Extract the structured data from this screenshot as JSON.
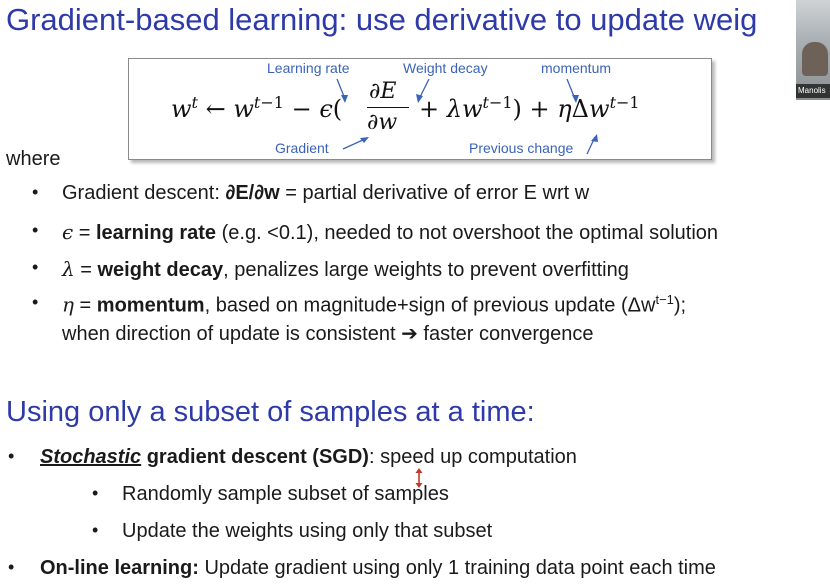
{
  "title": "Gradient-based learning: use derivative to update weig",
  "webcam": {
    "name": "Manolis"
  },
  "equation": {
    "annotations": {
      "learning_rate": "Learning rate",
      "weight_decay": "Weight decay",
      "momentum": "momentum",
      "gradient": "Gradient",
      "previous_change": "Previous change"
    }
  },
  "where_label": "where",
  "bullets": [
    {
      "lead": "Gradient descent: ",
      "bold": "∂E/∂w",
      "rest": " = partial derivative of error E wrt w"
    },
    {
      "sym": "ϵ",
      "mid": " = ",
      "bold": "learning rate",
      "rest": " (e.g. <0.1), needed to not overshoot the optimal solution"
    },
    {
      "sym": "λ",
      "mid": " = ",
      "bold": "weight decay",
      "rest": ", penalizes large weights to prevent overfitting"
    },
    {
      "sym": "η",
      "mid": " = ",
      "bold": "momentum",
      "rest": ", based on magnitude+sign of previous update (Δw",
      "sup": "t−1",
      "close": ");",
      "line2": "when direction of update is consistent ➔ faster convergence"
    }
  ],
  "subtitle": "Using only a subset of samples at a time:",
  "sgd": {
    "term_italic": "Stochastic",
    "term_rest": " gradient descent (SGD)",
    "rest": ": speed up computation",
    "subitems": [
      "Randomly sample subset of samples",
      "Update the weights using only that subset"
    ]
  },
  "online": {
    "bold": "On-line learning:",
    "rest": " Update gradient using only 1 training data point each time"
  },
  "colors": {
    "title": "#2d3aa8",
    "annotation": "#3b63b8",
    "cursor": "#c0392b"
  }
}
